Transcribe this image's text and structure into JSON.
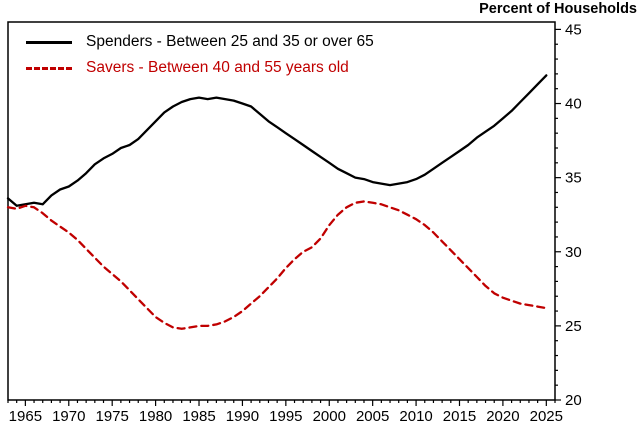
{
  "chart_data": {
    "type": "line",
    "title": "Percent of Households",
    "xlabel": "",
    "ylabel": "Percent of Households",
    "xlim": [
      1963,
      2026
    ],
    "ylim": [
      20,
      45.5
    ],
    "x_ticks": [
      1965,
      1970,
      1975,
      1980,
      1985,
      1990,
      1995,
      2000,
      2005,
      2010,
      2015,
      2020,
      2025
    ],
    "y_ticks": [
      20,
      25,
      30,
      35,
      40,
      45
    ],
    "grid": false,
    "legend_position": "top-left",
    "x": [
      1963,
      1964,
      1965,
      1966,
      1967,
      1968,
      1969,
      1970,
      1971,
      1972,
      1973,
      1974,
      1975,
      1976,
      1977,
      1978,
      1979,
      1980,
      1981,
      1982,
      1983,
      1984,
      1985,
      1986,
      1987,
      1988,
      1989,
      1990,
      1991,
      1992,
      1993,
      1994,
      1995,
      1996,
      1997,
      1998,
      1999,
      2000,
      2001,
      2002,
      2003,
      2004,
      2005,
      2006,
      2007,
      2008,
      2009,
      2010,
      2011,
      2012,
      2013,
      2014,
      2015,
      2016,
      2017,
      2018,
      2019,
      2020,
      2021,
      2022,
      2023,
      2024,
      2025
    ],
    "series": [
      {
        "id": "spenders",
        "name": "Spenders - Between 25 and 35 or over 65",
        "color": "#000000",
        "style": "solid",
        "y": [
          33.6,
          33.1,
          33.2,
          33.3,
          33.2,
          33.8,
          34.2,
          34.4,
          34.8,
          35.3,
          35.9,
          36.3,
          36.6,
          37.0,
          37.2,
          37.6,
          38.2,
          38.8,
          39.4,
          39.8,
          40.1,
          40.3,
          40.4,
          40.3,
          40.4,
          40.3,
          40.2,
          40.0,
          39.8,
          39.3,
          38.8,
          38.4,
          38.0,
          37.6,
          37.2,
          36.8,
          36.4,
          36.0,
          35.6,
          35.3,
          35.0,
          34.9,
          34.7,
          34.6,
          34.5,
          34.6,
          34.7,
          34.9,
          35.2,
          35.6,
          36.0,
          36.4,
          36.8,
          37.2,
          37.7,
          38.1,
          38.5,
          39.0,
          39.5,
          40.1,
          40.7,
          41.3,
          41.9
        ]
      },
      {
        "id": "savers",
        "name": "Savers - Between 40 and 55 years old",
        "color": "#c00000",
        "style": "dashed",
        "y": [
          33.0,
          32.9,
          33.1,
          33.0,
          32.6,
          32.1,
          31.7,
          31.3,
          30.8,
          30.2,
          29.6,
          29.0,
          28.5,
          28.0,
          27.4,
          26.8,
          26.2,
          25.6,
          25.2,
          24.9,
          24.8,
          24.9,
          25.0,
          25.0,
          25.1,
          25.3,
          25.6,
          26.0,
          26.5,
          27.0,
          27.6,
          28.2,
          28.9,
          29.5,
          30.0,
          30.3,
          30.9,
          31.8,
          32.5,
          33.0,
          33.3,
          33.4,
          33.3,
          33.2,
          33.0,
          32.8,
          32.5,
          32.2,
          31.8,
          31.3,
          30.7,
          30.1,
          29.5,
          28.9,
          28.3,
          27.7,
          27.2,
          26.9,
          26.7,
          26.5,
          26.4,
          26.3,
          26.2
        ]
      }
    ]
  }
}
